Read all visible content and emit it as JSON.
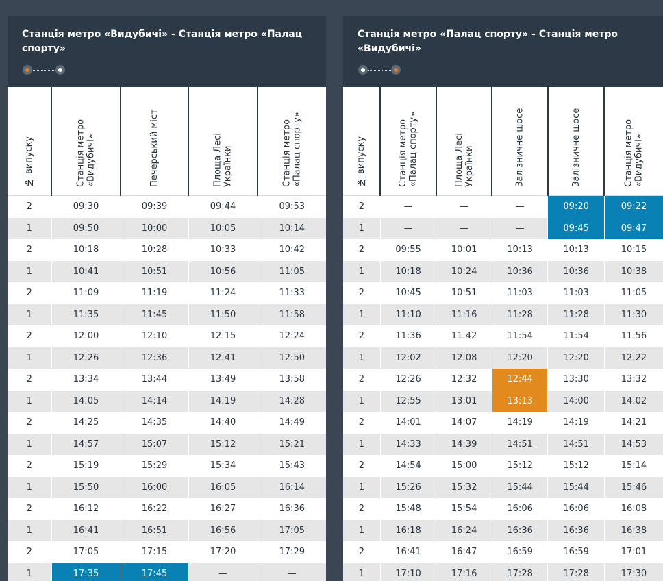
{
  "left": {
    "title": "Станція метро «Видубичі» - Станція метро «Палац спорту»",
    "route_markers": [
      "orange",
      "white"
    ],
    "columns": [
      "№ випуску",
      "Станція метро «Видубичі»",
      "Печерський міст",
      "Площа Лесі Українки",
      "Станція метро «Палац спорту»"
    ],
    "col_widths": [
      64,
      101,
      99,
      101,
      100
    ],
    "rows": [
      {
        "cells": [
          "2",
          "09:30",
          "09:39",
          "09:44",
          "09:53"
        ]
      },
      {
        "cells": [
          "1",
          "09:50",
          "10:00",
          "10:05",
          "10:14"
        ]
      },
      {
        "cells": [
          "2",
          "10:18",
          "10:28",
          "10:33",
          "10:42"
        ]
      },
      {
        "cells": [
          "1",
          "10:41",
          "10:51",
          "10:56",
          "11:05"
        ]
      },
      {
        "cells": [
          "2",
          "11:09",
          "11:19",
          "11:24",
          "11:33"
        ]
      },
      {
        "cells": [
          "1",
          "11:35",
          "11:45",
          "11:50",
          "11:58"
        ]
      },
      {
        "cells": [
          "2",
          "12:00",
          "12:10",
          "12:15",
          "12:24"
        ]
      },
      {
        "cells": [
          "1",
          "12:26",
          "12:36",
          "12:41",
          "12:50"
        ]
      },
      {
        "cells": [
          "2",
          "13:34",
          "13:44",
          "13:49",
          "13:58"
        ]
      },
      {
        "cells": [
          "1",
          "14:05",
          "14:14",
          "14:19",
          "14:28"
        ]
      },
      {
        "cells": [
          "2",
          "14:25",
          "14:35",
          "14:40",
          "14:49"
        ]
      },
      {
        "cells": [
          "1",
          "14:57",
          "15:07",
          "15:12",
          "15:21"
        ]
      },
      {
        "cells": [
          "2",
          "15:19",
          "15:29",
          "15:34",
          "15:43"
        ]
      },
      {
        "cells": [
          "1",
          "15:50",
          "16:00",
          "16:05",
          "16:14"
        ]
      },
      {
        "cells": [
          "2",
          "16:12",
          "16:22",
          "16:27",
          "16:36"
        ]
      },
      {
        "cells": [
          "1",
          "16:41",
          "16:51",
          "16:56",
          "17:05"
        ]
      },
      {
        "cells": [
          "2",
          "17:05",
          "17:15",
          "17:20",
          "17:29"
        ]
      },
      {
        "cells": [
          "1",
          "17:35",
          "17:45",
          "—",
          "—"
        ],
        "highlight": {
          "1": "blue",
          "2": "blue"
        }
      }
    ]
  },
  "right": {
    "title": "Станція метро «Палац спорту» - Станція метро «Видубичі»",
    "route_markers": [
      "white",
      "orange"
    ],
    "columns": [
      "№ випуску",
      "Станція метро «Палац спорту»",
      "Площа Лесі Українки",
      "Залізничне шосе",
      "Залізничне шосе",
      "Станція метро «Видубичі»"
    ],
    "col_widths": [
      54,
      81,
      81,
      81,
      82,
      85
    ],
    "rows": [
      {
        "cells": [
          "2",
          "—",
          "—",
          "—",
          "09:20",
          "09:22"
        ],
        "highlight": {
          "4": "blue",
          "5": "blue"
        }
      },
      {
        "cells": [
          "1",
          "—",
          "—",
          "—",
          "09:45",
          "09:47"
        ],
        "highlight": {
          "4": "blue",
          "5": "blue"
        }
      },
      {
        "cells": [
          "2",
          "09:55",
          "10:01",
          "10:13",
          "10:13",
          "10:15"
        ]
      },
      {
        "cells": [
          "1",
          "10:18",
          "10:24",
          "10:36",
          "10:36",
          "10:38"
        ]
      },
      {
        "cells": [
          "2",
          "10:45",
          "10:51",
          "11:03",
          "11:03",
          "11:05"
        ]
      },
      {
        "cells": [
          "1",
          "11:10",
          "11:16",
          "11:28",
          "11:28",
          "11:30"
        ]
      },
      {
        "cells": [
          "2",
          "11:36",
          "11:42",
          "11:54",
          "11:54",
          "11:56"
        ]
      },
      {
        "cells": [
          "1",
          "12:02",
          "12:08",
          "12:20",
          "12:20",
          "12:22"
        ]
      },
      {
        "cells": [
          "2",
          "12:26",
          "12:32",
          "12:44",
          "13:30",
          "13:32"
        ],
        "highlight": {
          "3": "orange"
        }
      },
      {
        "cells": [
          "1",
          "12:55",
          "13:01",
          "13:13",
          "14:00",
          "14:02"
        ],
        "highlight": {
          "3": "orange"
        }
      },
      {
        "cells": [
          "2",
          "14:01",
          "14:07",
          "14:19",
          "14:19",
          "14:21"
        ]
      },
      {
        "cells": [
          "1",
          "14:33",
          "14:39",
          "14:51",
          "14:51",
          "14:53"
        ]
      },
      {
        "cells": [
          "2",
          "14:54",
          "15:00",
          "15:12",
          "15:12",
          "15:14"
        ]
      },
      {
        "cells": [
          "1",
          "15:26",
          "15:32",
          "15:44",
          "15:44",
          "15:46"
        ]
      },
      {
        "cells": [
          "2",
          "15:48",
          "15:54",
          "16:06",
          "16:06",
          "16:08"
        ]
      },
      {
        "cells": [
          "1",
          "16:18",
          "16:24",
          "16:36",
          "16:36",
          "16:38"
        ]
      },
      {
        "cells": [
          "2",
          "16:41",
          "16:47",
          "16:59",
          "16:59",
          "17:01"
        ]
      },
      {
        "cells": [
          "1",
          "17:10",
          "17:16",
          "17:28",
          "17:28",
          "17:30"
        ]
      }
    ]
  },
  "colors": {
    "page_bg": "#3a4654",
    "panel_bg": "#2c3a48",
    "highlight_blue": "#0a81b4",
    "highlight_orange": "#e28a1e",
    "row_alt": "#e6e6e6"
  }
}
